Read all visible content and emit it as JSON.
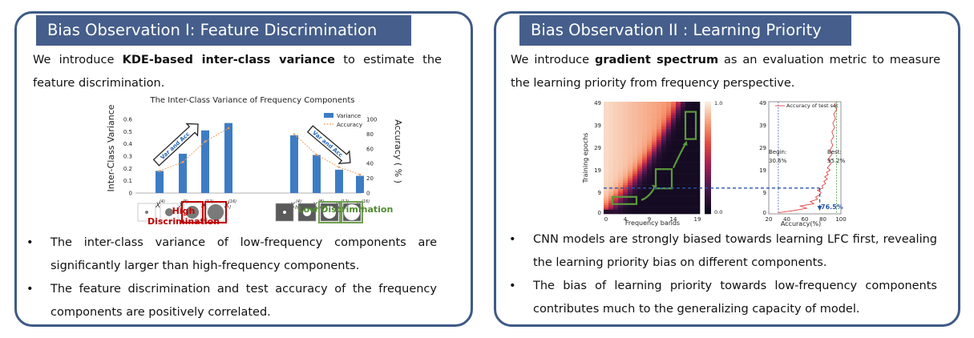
{
  "panel1": {
    "title": "Bias Observation I: Feature Discrimination",
    "intro_pre": "We introduce  ",
    "intro_bold": "KDE-based inter-class variance",
    "intro_post": " to estimate the feature discrimination.",
    "bullets": [
      "The inter-class variance of low-frequency  components are significantly larger than  high-frequency components.",
      "The feature discrimination and test accuracy of the frequency components are positively correlated."
    ],
    "chart_data": {
      "type": "bar",
      "title": "The Inter-Class Variance of Frequency Components",
      "ylabel_left": "Inter-Class Variance",
      "ylabel_right": "Accuracy ( % )",
      "ylim_left": [
        0,
        0.6
      ],
      "ylim_right": [
        0,
        100
      ],
      "left_ticks": [
        "0",
        "0.1",
        "0.2",
        "0.3",
        "0.4",
        "0.5",
        "0.6"
      ],
      "right_ticks": [
        "0",
        "20",
        "40",
        "60",
        "80",
        "100"
      ],
      "categories": [
        "X_l^(4)",
        "X_l^(8)",
        "X_l^(12)",
        "X_l^(16)",
        "X_h^(4)",
        "X_h^(8)",
        "X_h^(12)",
        "X_h^(16)"
      ],
      "category_labels": [
        {
          "base": "X",
          "sub": "l",
          "sup": "(4)"
        },
        {
          "base": "X",
          "sub": "l",
          "sup": "(8)"
        },
        {
          "base": "X",
          "sub": "l",
          "sup": "(12)"
        },
        {
          "base": "X",
          "sub": "l",
          "sup": "(16)"
        },
        {
          "base": "X",
          "sub": "h",
          "sup": "(4)"
        },
        {
          "base": "X",
          "sub": "h",
          "sup": "(8)"
        },
        {
          "base": "X",
          "sub": "h",
          "sup": "(12)"
        },
        {
          "base": "X",
          "sub": "h",
          "sup": "(16)"
        }
      ],
      "series": [
        {
          "name": "Variance",
          "values": [
            0.18,
            0.32,
            0.51,
            0.57,
            0.47,
            0.31,
            0.19,
            0.14
          ]
        },
        {
          "name": "Accuracy",
          "values": [
            30,
            42,
            70,
            88,
            80,
            52,
            35,
            25
          ]
        }
      ],
      "legend_position": "top-right",
      "arrow_labels": [
        "Var and Acc",
        "Var and Acc"
      ],
      "group_labels": [
        "High Discrimination",
        "Low Discrimination"
      ],
      "colors": {
        "bar": "#3d7cc4",
        "acc_line": "#f0a060",
        "high": "#c00000",
        "low": "#70a050",
        "arrow_text": "#2266bb",
        "arrow_text2": "#f0a020"
      }
    }
  },
  "panel2": {
    "title": "Bias Observation II : Learning Priority",
    "intro_pre": "We introduce ",
    "intro_bold": "gradient spectrum",
    "intro_post": " as an evaluation metric to measure the learning priority from frequency perspective.",
    "bullets": [
      "CNN models are strongly biased towards learning LFC first, revealing the learning priority bias on different components.",
      "The bias of learning priority towards low-frequency components contributes much to the generalizing capacity of model."
    ],
    "heatmap": {
      "type": "heatmap",
      "xlabel": "Frequency bands",
      "ylabel": "Training epochs",
      "x_ticks": [
        "0",
        "4",
        "9",
        "14",
        "19"
      ],
      "y_ticks": [
        "0",
        "9",
        "19",
        "29",
        "39",
        "49"
      ],
      "colorbar_ticks": [
        "1.0",
        "0.0"
      ]
    },
    "accuracy_plot": {
      "type": "line",
      "legend": "Accuracy of test set",
      "xlabel": "Accuracy(%)",
      "x_ticks": [
        "20",
        "40",
        "60",
        "80",
        "100"
      ],
      "y_ticks": [
        "0",
        "9",
        "19",
        "29",
        "39",
        "49"
      ],
      "begin_label": "Begin:",
      "begin_value": "30.6%",
      "best_label": "Best:",
      "best_value": "95.2%",
      "marker_value": "76.5%",
      "colors": {
        "line": "#e03030",
        "begin_line": "#4060a0",
        "best_line": "#40a040",
        "marker": "#2a55aa"
      }
    }
  }
}
